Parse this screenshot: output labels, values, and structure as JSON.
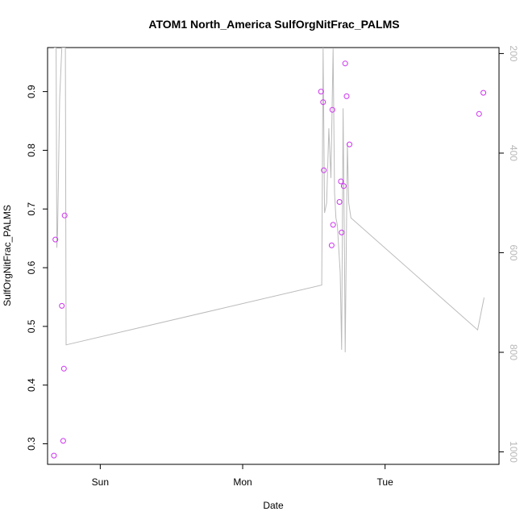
{
  "chart_data": {
    "type": "scatter",
    "title": "ATOM1 North_America SulfOrgNitFrac_PALMS",
    "xlabel": "Date",
    "ylabel": "SulfOrgNitFrac_PALMS",
    "x_ticks": [
      "Sun",
      "Mon",
      "Tue"
    ],
    "x_range_days": [
      -0.37,
      2.8
    ],
    "ylim": [
      0.265,
      0.975
    ],
    "y_ticks": [
      0.3,
      0.4,
      0.5,
      0.6,
      0.7,
      0.8,
      0.9
    ],
    "y2lim": [
      1025,
      188
    ],
    "y2_ticks": [
      200,
      400,
      600,
      800,
      1000
    ],
    "grid": false,
    "series": [
      {
        "kind": "points",
        "color": "#cc33ee",
        "points": [
          {
            "x": -0.325,
            "y": 0.28
          },
          {
            "x": -0.315,
            "y": 0.648
          },
          {
            "x": -0.27,
            "y": 0.535
          },
          {
            "x": -0.26,
            "y": 0.305
          },
          {
            "x": -0.255,
            "y": 0.428
          },
          {
            "x": -0.25,
            "y": 0.689
          },
          {
            "x": 1.55,
            "y": 0.9
          },
          {
            "x": 1.565,
            "y": 0.882
          },
          {
            "x": 1.57,
            "y": 0.766
          },
          {
            "x": 1.625,
            "y": 0.638
          },
          {
            "x": 1.63,
            "y": 0.869
          },
          {
            "x": 1.635,
            "y": 0.673
          },
          {
            "x": 1.68,
            "y": 0.712
          },
          {
            "x": 1.69,
            "y": 0.747
          },
          {
            "x": 1.695,
            "y": 0.66
          },
          {
            "x": 1.71,
            "y": 0.739
          },
          {
            "x": 1.72,
            "y": 0.948
          },
          {
            "x": 1.73,
            "y": 0.892
          },
          {
            "x": 1.75,
            "y": 0.81
          },
          {
            "x": 2.66,
            "y": 0.862
          },
          {
            "x": 2.69,
            "y": 0.898
          }
        ]
      },
      {
        "kind": "line",
        "axis": "right",
        "color": "#bbbbbb",
        "points": [
          {
            "x": -0.325,
            "y": 188
          },
          {
            "x": -0.31,
            "y": 188
          },
          {
            "x": -0.305,
            "y": 590
          },
          {
            "x": -0.3,
            "y": 560
          },
          {
            "x": -0.285,
            "y": 290
          },
          {
            "x": -0.27,
            "y": 188
          },
          {
            "x": -0.245,
            "y": 188
          },
          {
            "x": -0.24,
            "y": 785
          },
          {
            "x": 1.555,
            "y": 665
          },
          {
            "x": 1.565,
            "y": 188
          },
          {
            "x": 1.575,
            "y": 520
          },
          {
            "x": 1.59,
            "y": 500
          },
          {
            "x": 1.605,
            "y": 350
          },
          {
            "x": 1.62,
            "y": 450
          },
          {
            "x": 1.635,
            "y": 190
          },
          {
            "x": 1.645,
            "y": 480
          },
          {
            "x": 1.655,
            "y": 530
          },
          {
            "x": 1.665,
            "y": 545
          },
          {
            "x": 1.685,
            "y": 640
          },
          {
            "x": 1.695,
            "y": 795
          },
          {
            "x": 1.705,
            "y": 310
          },
          {
            "x": 1.715,
            "y": 600
          },
          {
            "x": 1.72,
            "y": 800
          },
          {
            "x": 1.735,
            "y": 380
          },
          {
            "x": 1.745,
            "y": 500
          },
          {
            "x": 1.76,
            "y": 530
          },
          {
            "x": 2.65,
            "y": 755
          },
          {
            "x": 2.695,
            "y": 690
          }
        ]
      }
    ]
  }
}
